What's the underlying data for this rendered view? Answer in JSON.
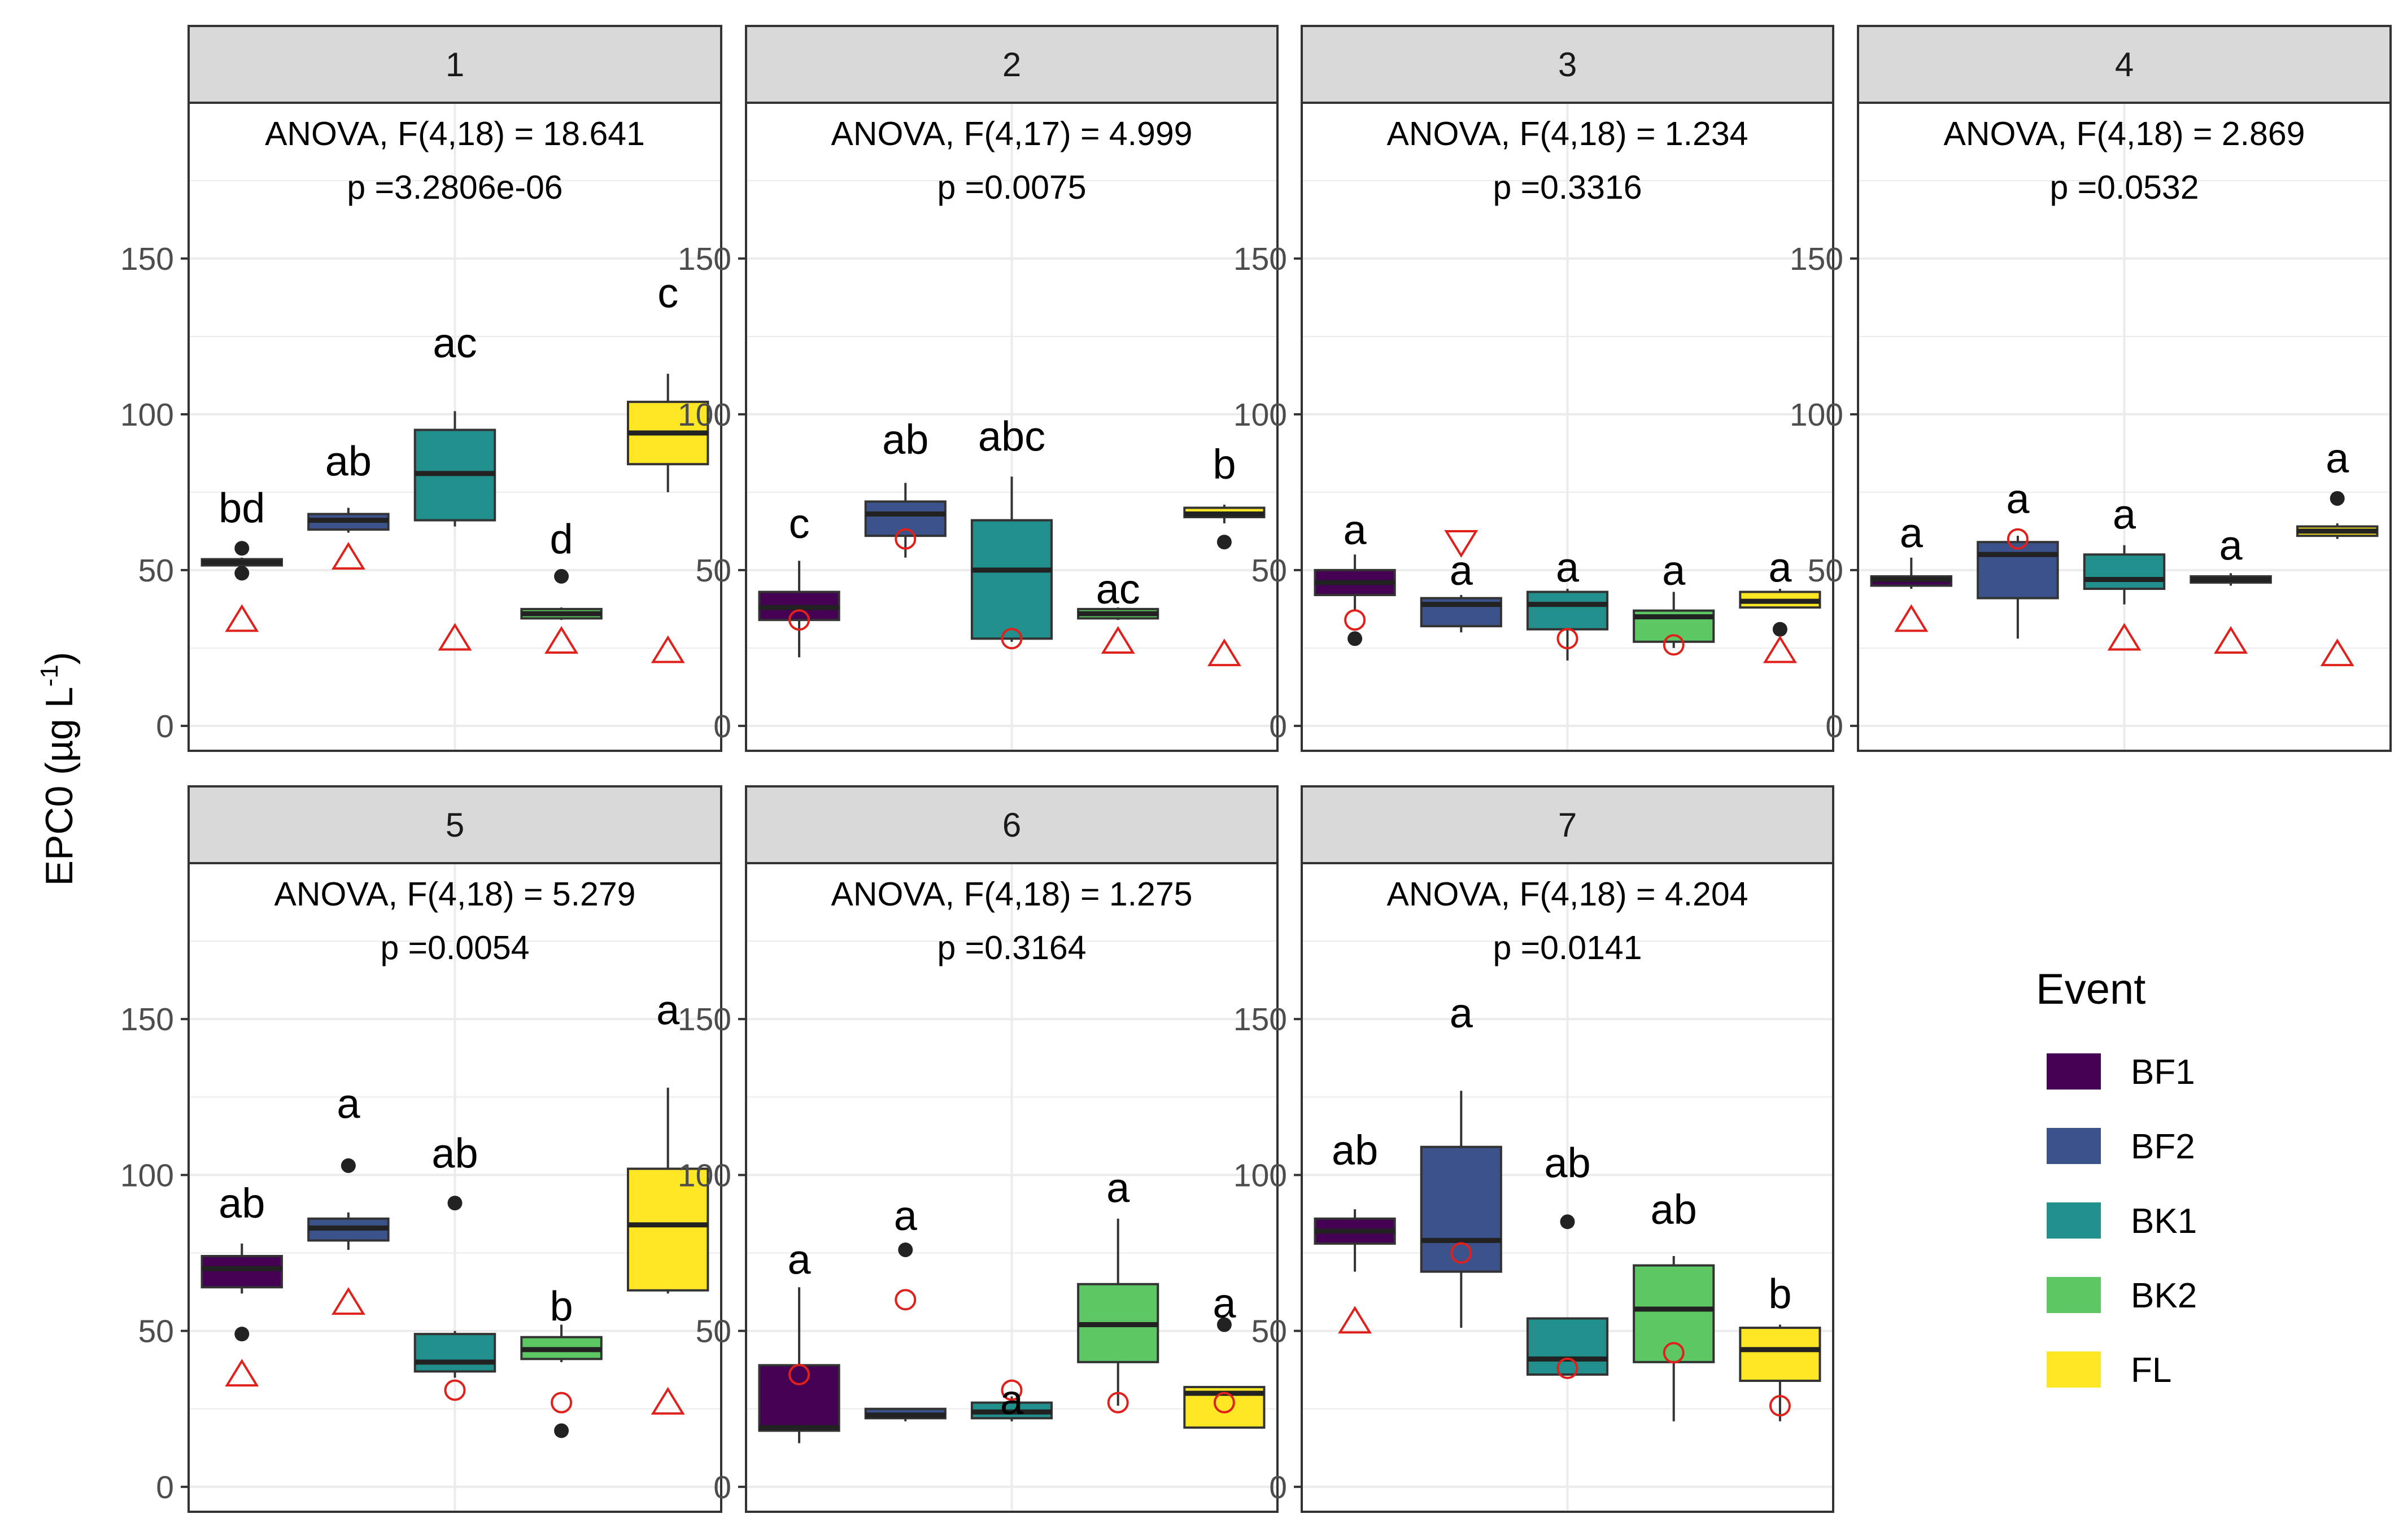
{
  "chart_data": {
    "type": "boxplot",
    "ylabel": "EPC0 (µg L⁻¹)",
    "ylabel_parts": {
      "main": "EPC0 (",
      "unit": "µg L",
      "exp": "-1",
      "close": ")"
    },
    "ylim": [
      -8,
      200
    ],
    "yticks": [
      0,
      50,
      100,
      150
    ],
    "grid": true,
    "legend": {
      "title": "Event",
      "position": "right",
      "entries": [
        "BF1",
        "BF2",
        "BK1",
        "BK2",
        "FL"
      ]
    },
    "colors": {
      "BF1": "#440154",
      "BF2": "#3b528b",
      "BK1": "#21908c",
      "BK2": "#5dc863",
      "FL": "#fde725",
      "reference_marker": "#e0201b",
      "outlier": "#222222",
      "strip_bg": "#d9d9d9",
      "grid": "#ebebeb"
    },
    "panels": [
      {
        "id": "1",
        "anova": "ANOVA, F(4,18) = 18.641",
        "p": "p =3.2806e-06",
        "boxes": [
          {
            "event": "BF1",
            "whisker_low": 51,
            "q1": 51.5,
            "median": 52.5,
            "q3": 53.5,
            "whisker_high": 54,
            "outliers": [
              49,
              57
            ],
            "letter": "bd",
            "letter_y": 70,
            "marker": "triangle",
            "marker_y": 34
          },
          {
            "event": "BF2",
            "whisker_low": 62,
            "q1": 63,
            "median": 66,
            "q3": 68,
            "whisker_high": 70,
            "outliers": [],
            "letter": "ab",
            "letter_y": 85,
            "marker": "triangle",
            "marker_y": 54
          },
          {
            "event": "BK1",
            "whisker_low": 64,
            "q1": 66,
            "median": 81,
            "q3": 95,
            "whisker_high": 101,
            "outliers": [],
            "letter": "ac",
            "letter_y": 123,
            "marker": "triangle",
            "marker_y": 28
          },
          {
            "event": "BK2",
            "whisker_low": 34,
            "q1": 34.5,
            "median": 36,
            "q3": 37.5,
            "whisker_high": 38,
            "outliers": [
              48
            ],
            "letter": "d",
            "letter_y": 60,
            "marker": "triangle",
            "marker_y": 27
          },
          {
            "event": "FL",
            "whisker_low": 75,
            "q1": 84,
            "median": 94,
            "q3": 104,
            "whisker_high": 113,
            "outliers": [],
            "letter": "c",
            "letter_y": 139,
            "marker": "triangle",
            "marker_y": 24
          }
        ]
      },
      {
        "id": "2",
        "anova": "ANOVA, F(4,17) =  4.999",
        "p": "p =0.0075",
        "boxes": [
          {
            "event": "BF1",
            "whisker_low": 22,
            "q1": 34,
            "median": 38,
            "q3": 43,
            "whisker_high": 53,
            "outliers": [],
            "letter": "c",
            "letter_y": 65,
            "marker": "circle",
            "marker_y": 34
          },
          {
            "event": "BF2",
            "whisker_low": 54,
            "q1": 61,
            "median": 68,
            "q3": 72,
            "whisker_high": 78,
            "outliers": [],
            "letter": "ab",
            "letter_y": 92,
            "marker": "circle",
            "marker_y": 60
          },
          {
            "event": "BK1",
            "whisker_low": 27,
            "q1": 28,
            "median": 50,
            "q3": 66,
            "whisker_high": 80,
            "outliers": [],
            "letter": "abc",
            "letter_y": 93,
            "marker": "circle",
            "marker_y": 28
          },
          {
            "event": "BK2",
            "whisker_low": 34,
            "q1": 34.5,
            "median": 36,
            "q3": 37.5,
            "whisker_high": 38,
            "outliers": [],
            "letter": "ac",
            "letter_y": 44,
            "marker": "triangle",
            "marker_y": 27
          },
          {
            "event": "FL",
            "whisker_low": 65,
            "q1": 67,
            "median": 68,
            "q3": 70,
            "whisker_high": 71,
            "outliers": [
              59
            ],
            "letter": "b",
            "letter_y": 84,
            "marker": "triangle",
            "marker_y": 23
          }
        ]
      },
      {
        "id": "3",
        "anova": "ANOVA, F(4,18) =  1.234",
        "p": "p =0.3316",
        "boxes": [
          {
            "event": "BF1",
            "whisker_low": 37,
            "q1": 42,
            "median": 46,
            "q3": 50,
            "whisker_high": 55,
            "outliers": [
              28
            ],
            "letter": "a",
            "letter_y": 63,
            "marker": "circle",
            "marker_y": 34
          },
          {
            "event": "BF2",
            "whisker_low": 30,
            "q1": 32,
            "median": 39,
            "q3": 41,
            "whisker_high": 42,
            "outliers": [],
            "letter": "a",
            "letter_y": 50,
            "marker": "triangle-down",
            "marker_y": 59
          },
          {
            "event": "BK1",
            "whisker_low": 21,
            "q1": 31,
            "median": 39,
            "q3": 43,
            "whisker_high": 44,
            "outliers": [],
            "letter": "a",
            "letter_y": 51,
            "marker": "circle",
            "marker_y": 28
          },
          {
            "event": "BK2",
            "whisker_low": 25,
            "q1": 27,
            "median": 35,
            "q3": 37,
            "whisker_high": 43,
            "outliers": [],
            "letter": "a",
            "letter_y": 50,
            "marker": "circle",
            "marker_y": 26
          },
          {
            "event": "FL",
            "whisker_low": 38,
            "q1": 38,
            "median": 40,
            "q3": 43,
            "whisker_high": 44,
            "outliers": [
              31
            ],
            "letter": "a",
            "letter_y": 51,
            "marker": "triangle",
            "marker_y": 24
          }
        ]
      },
      {
        "id": "4",
        "anova": "ANOVA, F(4,18) =  2.869",
        "p": "p =0.0532",
        "boxes": [
          {
            "event": "BF1",
            "whisker_low": 44,
            "q1": 45,
            "median": 47,
            "q3": 48,
            "whisker_high": 54,
            "outliers": [],
            "letter": "a",
            "letter_y": 62,
            "marker": "triangle",
            "marker_y": 34
          },
          {
            "event": "BF2",
            "whisker_low": 28,
            "q1": 41,
            "median": 55,
            "q3": 59,
            "whisker_high": 61,
            "outliers": [],
            "letter": "a",
            "letter_y": 73,
            "marker": "circle",
            "marker_y": 60
          },
          {
            "event": "BK1",
            "whisker_low": 39,
            "q1": 44,
            "median": 47,
            "q3": 55,
            "whisker_high": 58,
            "outliers": [],
            "letter": "a",
            "letter_y": 68,
            "marker": "triangle",
            "marker_y": 28
          },
          {
            "event": "BK2",
            "whisker_low": 45,
            "q1": 46,
            "median": 47,
            "q3": 48,
            "whisker_high": 49,
            "outliers": [],
            "letter": "a",
            "letter_y": 58,
            "marker": "triangle",
            "marker_y": 27
          },
          {
            "event": "FL",
            "whisker_low": 60,
            "q1": 61,
            "median": 62.5,
            "q3": 64,
            "whisker_high": 65,
            "outliers": [
              73
            ],
            "letter": "a",
            "letter_y": 86,
            "marker": "triangle",
            "marker_y": 23
          }
        ]
      },
      {
        "id": "5",
        "anova": "ANOVA, F(4,18) =  5.279",
        "p": "p =0.0054",
        "boxes": [
          {
            "event": "BF1",
            "whisker_low": 62,
            "q1": 64,
            "median": 70,
            "q3": 74,
            "whisker_high": 78,
            "outliers": [
              49
            ],
            "letter": "ab",
            "letter_y": 91,
            "marker": "triangle",
            "marker_y": 36
          },
          {
            "event": "BF2",
            "whisker_low": 76,
            "q1": 79,
            "median": 83,
            "q3": 86,
            "whisker_high": 88,
            "outliers": [
              103
            ],
            "letter": "a",
            "letter_y": 123,
            "marker": "triangle",
            "marker_y": 59
          },
          {
            "event": "BK1",
            "whisker_low": 35,
            "q1": 37,
            "median": 40,
            "q3": 49,
            "whisker_high": 50,
            "outliers": [
              91
            ],
            "letter": "ab",
            "letter_y": 107,
            "marker": "circle",
            "marker_y": 31
          },
          {
            "event": "BK2",
            "whisker_low": 40,
            "q1": 41,
            "median": 44,
            "q3": 48,
            "whisker_high": 52,
            "outliers": [
              18
            ],
            "letter": "b",
            "letter_y": 58,
            "marker": "circle",
            "marker_y": 27
          },
          {
            "event": "FL",
            "whisker_low": 62,
            "q1": 63,
            "median": 84,
            "q3": 102,
            "whisker_high": 128,
            "outliers": [],
            "letter": "a",
            "letter_y": 153,
            "marker": "triangle",
            "marker_y": 27
          }
        ]
      },
      {
        "id": "6",
        "anova": "ANOVA, F(4,18) =  1.275",
        "p": "p =0.3164",
        "boxes": [
          {
            "event": "BF1",
            "whisker_low": 14,
            "q1": 18,
            "median": 19,
            "q3": 39,
            "whisker_high": 64,
            "outliers": [],
            "letter": "a",
            "letter_y": 73,
            "marker": "circle",
            "marker_y": 36
          },
          {
            "event": "BF2",
            "whisker_low": 21,
            "q1": 22,
            "median": 23,
            "q3": 25,
            "whisker_high": 25,
            "outliers": [
              76
            ],
            "letter": "a",
            "letter_y": 87,
            "marker": "circle",
            "marker_y": 60
          },
          {
            "event": "BK1",
            "whisker_low": 21,
            "q1": 22,
            "median": 24,
            "q3": 27,
            "whisker_high": 29,
            "outliers": [],
            "letter": "a",
            "letter_y": 28,
            "marker": "circle",
            "marker_y": 31
          },
          {
            "event": "BK2",
            "whisker_low": 26,
            "q1": 40,
            "median": 52,
            "q3": 65,
            "whisker_high": 86,
            "outliers": [],
            "letter": "a",
            "letter_y": 96,
            "marker": "circle",
            "marker_y": 27
          },
          {
            "event": "FL",
            "whisker_low": 19,
            "q1": 19,
            "median": 30,
            "q3": 32,
            "whisker_high": 32,
            "outliers": [
              52
            ],
            "letter": "a",
            "letter_y": 59,
            "marker": "circle",
            "marker_y": 27
          }
        ]
      },
      {
        "id": "7",
        "anova": "ANOVA, F(4,18) =  4.204",
        "p": "p =0.0141",
        "boxes": [
          {
            "event": "BF1",
            "whisker_low": 69,
            "q1": 78,
            "median": 82,
            "q3": 86,
            "whisker_high": 89,
            "outliers": [],
            "letter": "ab",
            "letter_y": 108,
            "marker": "triangle",
            "marker_y": 53
          },
          {
            "event": "BF2",
            "whisker_low": 51,
            "q1": 69,
            "median": 79,
            "q3": 109,
            "whisker_high": 127,
            "outliers": [],
            "letter": "a",
            "letter_y": 152,
            "marker": "circle",
            "marker_y": 75
          },
          {
            "event": "BK1",
            "whisker_low": 36,
            "q1": 36,
            "median": 41,
            "q3": 54,
            "whisker_high": 54,
            "outliers": [
              85
            ],
            "letter": "ab",
            "letter_y": 104,
            "marker": "circle",
            "marker_y": 38
          },
          {
            "event": "BK2",
            "whisker_low": 21,
            "q1": 40,
            "median": 57,
            "q3": 71,
            "whisker_high": 74,
            "outliers": [],
            "letter": "ab",
            "letter_y": 89,
            "marker": "circle",
            "marker_y": 43
          },
          {
            "event": "FL",
            "whisker_low": 21,
            "q1": 34,
            "median": 44,
            "q3": 51,
            "whisker_high": 52,
            "outliers": [],
            "letter": "b",
            "letter_y": 62,
            "marker": "circle",
            "marker_y": 26
          }
        ]
      }
    ]
  }
}
